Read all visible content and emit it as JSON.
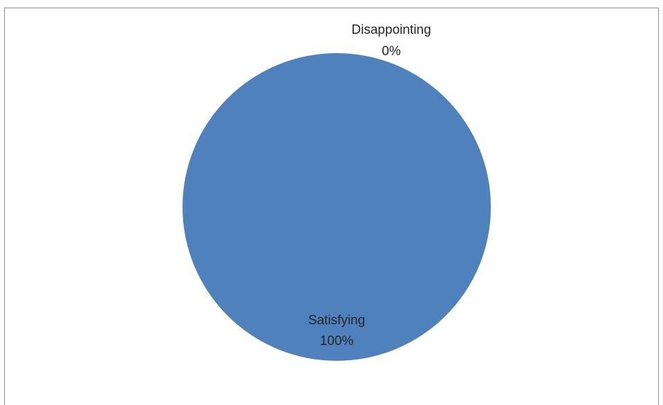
{
  "chart_data": {
    "type": "pie",
    "title": "",
    "categories": [
      "Satisfying",
      "Disappointing"
    ],
    "values": [
      100,
      0
    ],
    "labels": [
      {
        "name": "Satisfying",
        "percent": "100%"
      },
      {
        "name": "Disappointing",
        "percent": "0%"
      }
    ],
    "colors": [
      "#4f81bd",
      "#c0504d"
    ],
    "legend": "none"
  }
}
